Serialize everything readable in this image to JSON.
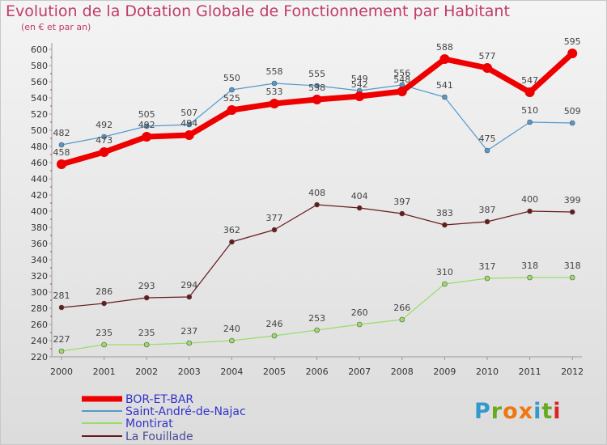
{
  "chart_data": {
    "type": "line",
    "title": "Evolution de la Dotation Globale de Fonctionnement par Habitant",
    "subtitle": "(en € et par an)",
    "xlabel": "",
    "ylabel": "",
    "x": [
      "2000",
      "2001",
      "2002",
      "2003",
      "2004",
      "2005",
      "2006",
      "2007",
      "2008",
      "2009",
      "2010",
      "2011",
      "2012"
    ],
    "ylim": [
      220,
      600
    ],
    "yticks": [
      220,
      240,
      260,
      280,
      300,
      320,
      340,
      360,
      380,
      400,
      420,
      440,
      460,
      480,
      500,
      520,
      540,
      560,
      580,
      600
    ],
    "grid": false,
    "legend_position": "bottom-left",
    "series": [
      {
        "name": "BOR-ET-BAR",
        "color": "#ee0000",
        "values": [
          458,
          473,
          492,
          494,
          525,
          533,
          538,
          542,
          548,
          588,
          577,
          547,
          595
        ]
      },
      {
        "name": "Saint-André-de-Najac",
        "color": "#5599cc",
        "values": [
          482,
          492,
          505,
          507,
          550,
          558,
          555,
          549,
          556,
          541,
          475,
          510,
          509
        ]
      },
      {
        "name": "Montirat",
        "color": "#99dd66",
        "values": [
          227,
          235,
          235,
          237,
          240,
          246,
          253,
          260,
          266,
          310,
          317,
          318,
          318
        ]
      },
      {
        "name": "La Fouillade",
        "color": "#661a1a",
        "values": [
          281,
          286,
          293,
          294,
          362,
          377,
          408,
          404,
          397,
          383,
          387,
          400,
          399
        ]
      }
    ]
  },
  "logo": {
    "letters": [
      "P",
      "r",
      "o",
      "x",
      "i",
      "t",
      "i"
    ],
    "colors": [
      "#3399cc",
      "#66aa22",
      "#ee7711",
      "#ee7711",
      "#3399cc",
      "#66aa22",
      "#dd2222"
    ]
  }
}
